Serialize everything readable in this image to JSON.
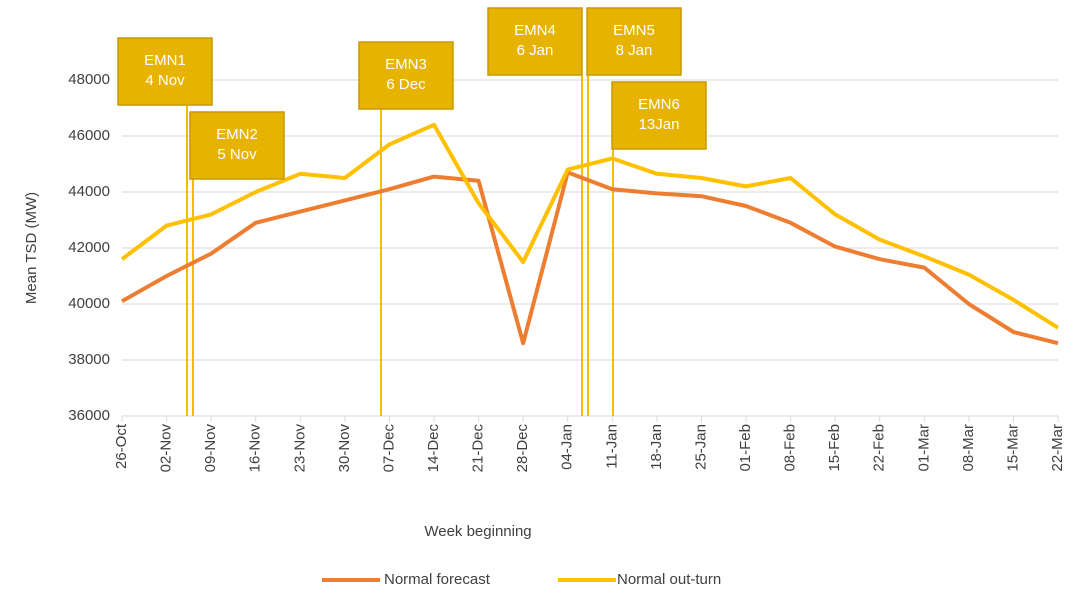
{
  "chart_data": {
    "type": "line",
    "x_label": "Week beginning",
    "y_label": "Mean TSD (MW)",
    "categories": [
      "26-Oct",
      "02-Nov",
      "09-Nov",
      "16-Nov",
      "23-Nov",
      "30-Nov",
      "07-Dec",
      "14-Dec",
      "21-Dec",
      "28-Dec",
      "04-Jan",
      "11-Jan",
      "18-Jan",
      "25-Jan",
      "01-Feb",
      "08-Feb",
      "15-Feb",
      "22-Feb",
      "01-Mar",
      "08-Mar",
      "15-Mar",
      "22-Mar"
    ],
    "series": [
      {
        "name": "Normal forecast",
        "color": "#ED7D31",
        "values": [
          40100,
          41000,
          41800,
          42900,
          43300,
          43700,
          44100,
          44550,
          44400,
          38600,
          44700,
          44100,
          43950,
          43850,
          43500,
          42900,
          42050,
          41600,
          41300,
          40000,
          39000,
          38600
        ]
      },
      {
        "name": "Normal out-turn",
        "color": "#FFC000",
        "values": [
          41600,
          42800,
          43200,
          44000,
          44650,
          44500,
          45700,
          46400,
          43600,
          41500,
          44800,
          45200,
          44650,
          44500,
          44200,
          44500,
          43200,
          42300,
          41700,
          41050,
          40150,
          39150
        ]
      }
    ],
    "ylim": [
      36000,
      48000
    ],
    "yticks": [
      36000,
      38000,
      40000,
      42000,
      44000,
      46000,
      48000
    ],
    "grid": true,
    "annotations": [
      {
        "lines": [
          "EMN1",
          "4 Nov"
        ]
      },
      {
        "lines": [
          "EMN2",
          "5 Nov"
        ]
      },
      {
        "lines": [
          "EMN3",
          "6 Dec"
        ]
      },
      {
        "lines": [
          "EMN4",
          "6 Jan"
        ]
      },
      {
        "lines": [
          "EMN5",
          "8 Jan"
        ]
      },
      {
        "lines": [
          "EMN6",
          "13Jan"
        ]
      }
    ],
    "legend": "bottom"
  }
}
